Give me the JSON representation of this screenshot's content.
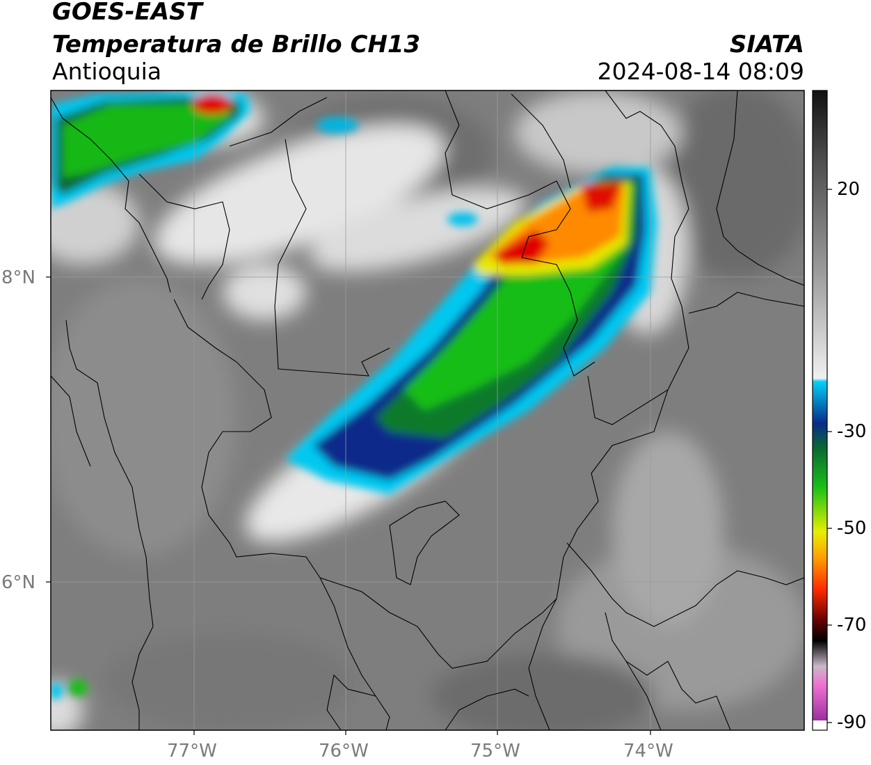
{
  "header": {
    "satellite": "GOES-EAST",
    "product": "Temperatura de Brillo CH13",
    "region": "Antioquia",
    "agency": "SIATA",
    "datetime": "2024-08-14 08:09"
  },
  "map": {
    "lat_labels": [
      "8°N",
      "6°N"
    ],
    "lon_labels": [
      "77°W",
      "76°W",
      "75°W",
      "74°W"
    ],
    "colorbar": {
      "ticks": [
        "20",
        "-30",
        "-50",
        "-70",
        "-90"
      ],
      "colors": {
        "warm_black": "#111111",
        "gray": "#8a8a8a",
        "white": "#f2f2f2",
        "cyan": "#00c8f0",
        "navy": "#0a2c8a",
        "green": "#12b012",
        "yellow": "#e8e800",
        "orange": "#ff8000",
        "red": "#e00000",
        "magenta": "#c040c0"
      }
    }
  }
}
